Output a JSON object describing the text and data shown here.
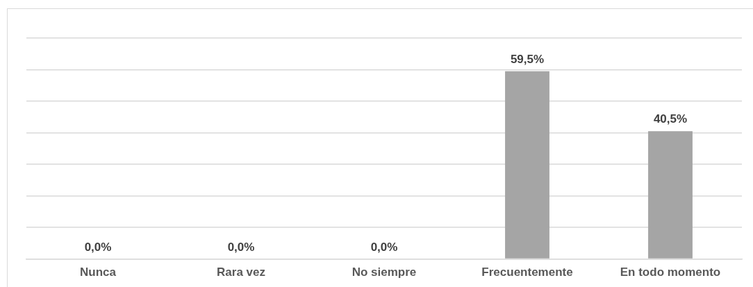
{
  "chart_data": {
    "type": "bar",
    "categories": [
      "Nunca",
      "Rara vez",
      "No siempre",
      "Frecuentemente",
      "En todo momento"
    ],
    "values": [
      0.0,
      0.0,
      0.0,
      59.5,
      40.5
    ],
    "color": "#a5a5a5",
    "value_labels": [
      "0,0%",
      "0,0%",
      "0,0%",
      "59,5%",
      "40,5%"
    ],
    "ylim": [
      0,
      70
    ],
    "yticks": [
      {
        "value": 0,
        "label": null
      },
      {
        "value": 10,
        "label": null
      },
      {
        "value": 20,
        "label": null
      },
      {
        "value": 30,
        "label": null
      },
      {
        "value": 40,
        "label": null
      },
      {
        "value": 50,
        "label": null
      },
      {
        "value": 60,
        "label": null
      },
      {
        "value": 70,
        "label": null
      }
    ],
    "grid": "y",
    "legend": false,
    "tick_labels": "x"
  }
}
